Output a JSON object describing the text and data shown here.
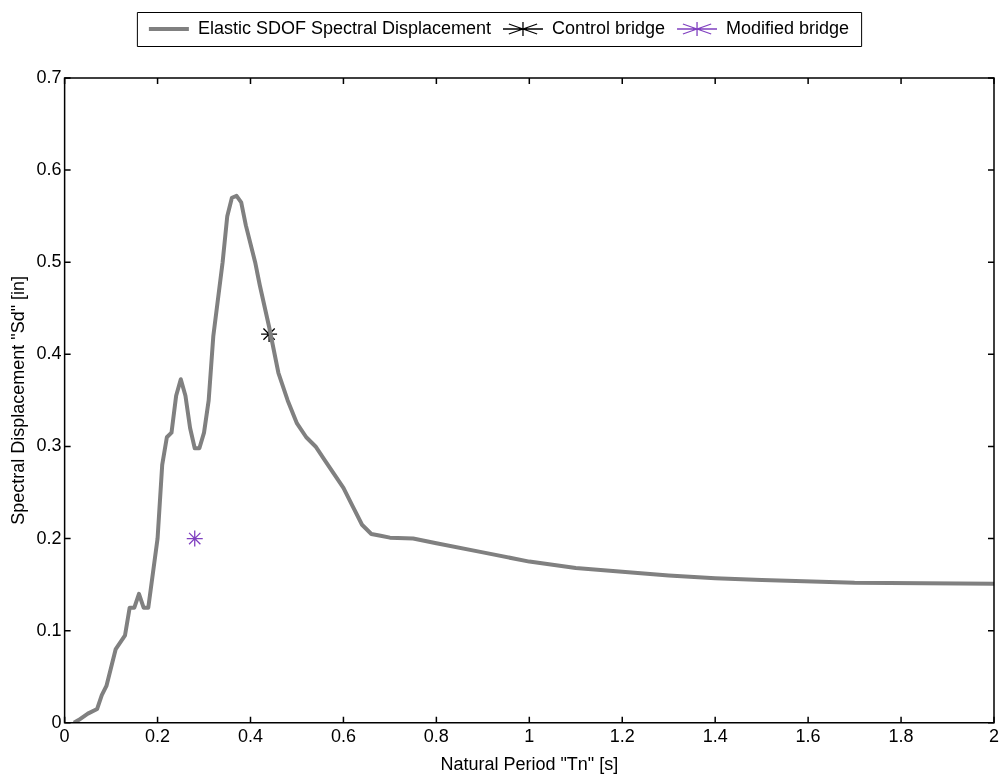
{
  "chart_data": {
    "type": "line",
    "xlabel": "Natural Period \"Tn\" [s]",
    "ylabel": "Spectral Displacement \"Sd\" [in]",
    "xlim": [
      0,
      2
    ],
    "ylim": [
      0,
      0.7
    ],
    "xticks": [
      0,
      0.2,
      0.4,
      0.6,
      0.8,
      1,
      1.2,
      1.4,
      1.6,
      1.8,
      2
    ],
    "yticks": [
      0,
      0.1,
      0.2,
      0.3,
      0.4,
      0.5,
      0.6,
      0.7
    ],
    "grid": false,
    "legend": "top",
    "series": [
      {
        "name": "Elastic SDOF Spectral Displacement",
        "color": "#808080",
        "marker": "none",
        "x": [
          0.02,
          0.03,
          0.05,
          0.07,
          0.08,
          0.09,
          0.1,
          0.11,
          0.13,
          0.14,
          0.15,
          0.16,
          0.17,
          0.18,
          0.2,
          0.21,
          0.22,
          0.23,
          0.24,
          0.25,
          0.26,
          0.27,
          0.28,
          0.29,
          0.3,
          0.31,
          0.32,
          0.34,
          0.35,
          0.36,
          0.37,
          0.38,
          0.39,
          0.41,
          0.42,
          0.44,
          0.46,
          0.48,
          0.5,
          0.52,
          0.54,
          0.56,
          0.58,
          0.6,
          0.62,
          0.64,
          0.66,
          0.68,
          0.7,
          0.75,
          0.8,
          0.9,
          1.0,
          1.1,
          1.2,
          1.3,
          1.4,
          1.5,
          1.7,
          2.0
        ],
        "values": [
          0,
          0.003,
          0.01,
          0.015,
          0.03,
          0.04,
          0.06,
          0.08,
          0.095,
          0.125,
          0.125,
          0.14,
          0.125,
          0.125,
          0.2,
          0.28,
          0.31,
          0.315,
          0.355,
          0.373,
          0.355,
          0.32,
          0.298,
          0.298,
          0.315,
          0.35,
          0.42,
          0.5,
          0.55,
          0.57,
          0.572,
          0.565,
          0.54,
          0.5,
          0.475,
          0.43,
          0.38,
          0.35,
          0.325,
          0.31,
          0.3,
          0.285,
          0.27,
          0.255,
          0.235,
          0.215,
          0.205,
          0.203,
          0.201,
          0.2,
          0.195,
          0.185,
          0.175,
          0.168,
          0.164,
          0.16,
          0.157,
          0.155,
          0.152,
          0.151
        ]
      },
      {
        "name": "Control bridge",
        "color": "#000000",
        "type": "scatter",
        "marker": "cross",
        "x": [
          0.44
        ],
        "values": [
          0.422
        ]
      },
      {
        "name": "Modified bridge",
        "color": "#8040c0",
        "type": "scatter",
        "marker": "cross",
        "x": [
          0.28
        ],
        "values": [
          0.2
        ]
      }
    ]
  }
}
